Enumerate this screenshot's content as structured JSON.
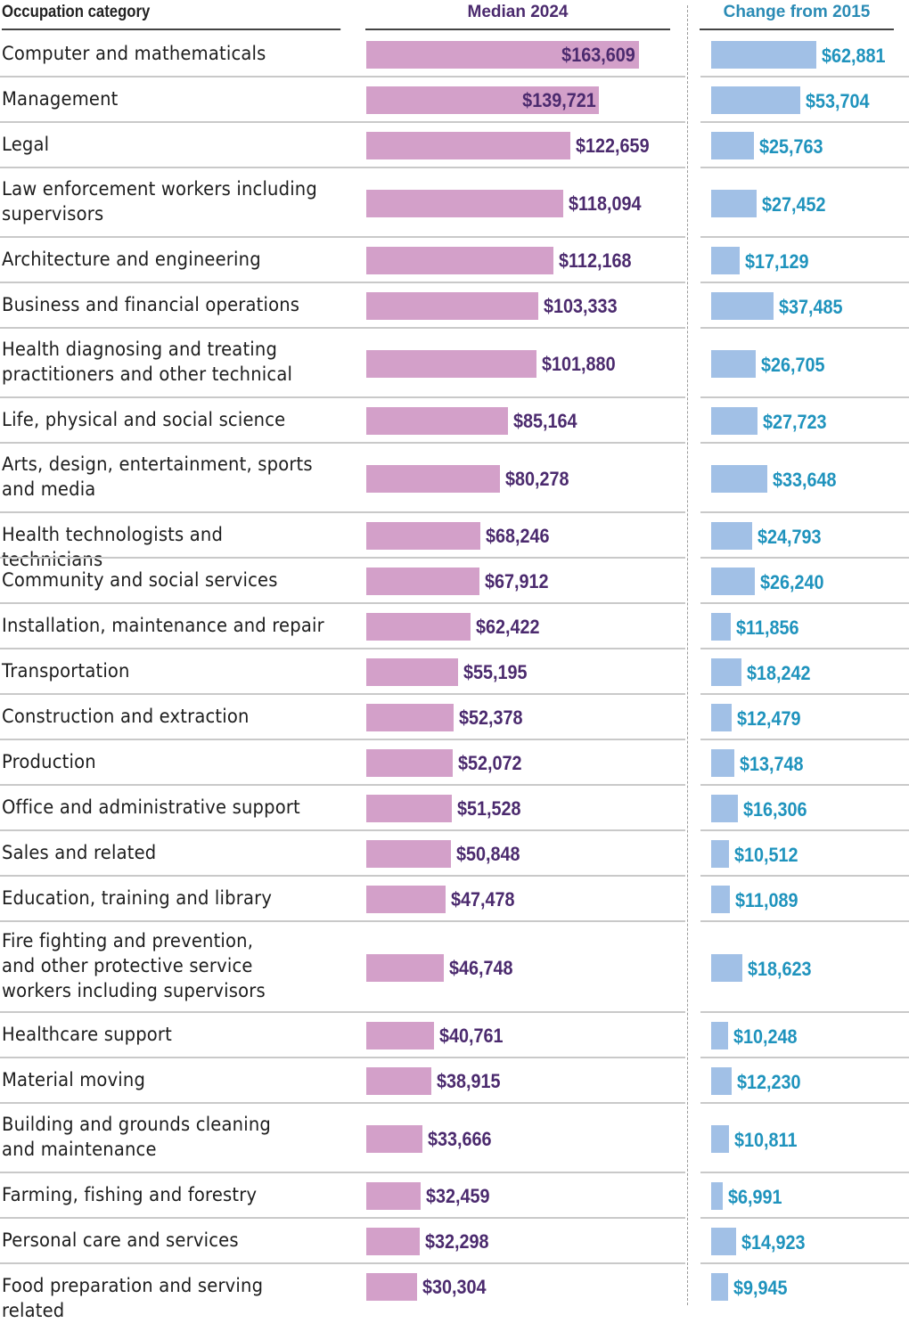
{
  "chart_data": {
    "type": "bar",
    "orientation": "horizontal",
    "title": "",
    "columns": {
      "category_header": "Occupation category",
      "median_header": "Median 2024",
      "change_header": "Change from 2015"
    },
    "categories": [
      "Computer and mathematicals",
      "Management",
      "Legal",
      "Law enforcement workers including supervisors",
      "Architecture and engineering",
      "Business and financial operations",
      "Health diagnosing and treating practitioners and other technical",
      "Life, physical and social science",
      "Arts, design, entertainment, sports and media",
      "Health technologists and technicians",
      "Community and social services",
      "Installation, maintenance and repair",
      "Transportation",
      "Construction and extraction",
      "Production",
      "Office and administrative support",
      "Sales and related",
      "Education, training and library",
      "Fire fighting and prevention, and other protective service workers including supervisors",
      "Healthcare support",
      "Material moving",
      "Building and grounds cleaning and maintenance",
      "Farming, fishing and forestry",
      "Personal care and services",
      "Food preparation and serving related"
    ],
    "series": [
      {
        "name": "Median 2024",
        "color": "#d3a0c9",
        "label_color": "#4b2a6e",
        "values": [
          163609,
          139721,
          122659,
          118094,
          112168,
          103333,
          101880,
          85164,
          80278,
          68246,
          67912,
          62422,
          55195,
          52378,
          52072,
          51528,
          50848,
          47478,
          46748,
          40761,
          38915,
          33666,
          32459,
          32298,
          30304
        ],
        "labels": [
          "$163,609",
          "$139,721",
          "$122,659",
          "$118,094",
          "$112,168",
          "$103,333",
          "$101,880",
          "$85,164",
          "$80,278",
          "$68,246",
          "$67,912",
          "$62,422",
          "$55,195",
          "$52,378",
          "$52,072",
          "$51,528",
          "$50,848",
          "$47,478",
          "$46,748",
          "$40,761",
          "$38,915",
          "$33,666",
          "$32,459",
          "$32,298",
          "$30,304"
        ]
      },
      {
        "name": "Change from 2015",
        "color": "#a1c0e6",
        "label_color": "#1f93bd",
        "values": [
          62881,
          53704,
          25763,
          27452,
          17129,
          37485,
          26705,
          27723,
          33648,
          24793,
          26240,
          11856,
          18242,
          12479,
          13748,
          16306,
          10512,
          11089,
          18623,
          10248,
          12230,
          10811,
          6991,
          14923,
          9945
        ],
        "labels": [
          "$62,881",
          "$53,704",
          "$25,763",
          "$27,452",
          "$17,129",
          "$37,485",
          "$26,705",
          "$27,723",
          "$33,648",
          "$24,793",
          "$26,240",
          "$11,856",
          "$18,242",
          "$12,479",
          "$13,748",
          "$16,306",
          "$10,512",
          "$11,089",
          "$18,623",
          "$10,248",
          "$12,230",
          "$10,811",
          "$6,991",
          "$14,923",
          "$9,945"
        ]
      }
    ],
    "label_lines": [
      [
        "Computer and mathematicals"
      ],
      [
        "Management"
      ],
      [
        "Legal"
      ],
      [
        "Law enforcement workers including",
        "supervisors"
      ],
      [
        "Architecture and engineering"
      ],
      [
        "Business and financial operations"
      ],
      [
        "Health diagnosing and treating",
        "practitioners and other technical"
      ],
      [
        "Life, physical and social science"
      ],
      [
        "Arts, design, entertainment, sports",
        "and media"
      ],
      [
        "Health technologists and technicians"
      ],
      [
        "Community and social services"
      ],
      [
        "Installation, maintenance and repair"
      ],
      [
        "Transportation"
      ],
      [
        "Construction and extraction"
      ],
      [
        "Production"
      ],
      [
        "Office and administrative support"
      ],
      [
        "Sales and related"
      ],
      [
        "Education, training and library"
      ],
      [
        "Fire fighting and prevention,",
        "and other protective service",
        "workers including supervisors"
      ],
      [
        "Healthcare support"
      ],
      [
        "Material moving"
      ],
      [
        "Building and grounds cleaning",
        "and maintenance"
      ],
      [
        "Farming, fishing and forestry"
      ],
      [
        "Personal care and services"
      ],
      [
        "Food preparation and serving related"
      ]
    ],
    "xlabel": "",
    "ylabel": "",
    "grid": false,
    "legend": "none"
  }
}
